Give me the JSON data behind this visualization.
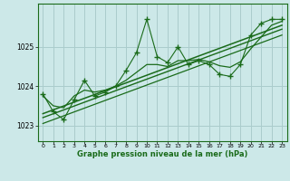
{
  "title": "",
  "xlabel": "Graphe pression niveau de la mer (hPa)",
  "bg_color": "#cce8e8",
  "grid_color": "#aacccc",
  "line_color": "#1a6b1a",
  "ylim": [
    1022.6,
    1026.1
  ],
  "xlim": [
    -0.5,
    23.5
  ],
  "yticks": [
    1023,
    1024,
    1025
  ],
  "xticks": [
    0,
    1,
    2,
    3,
    4,
    5,
    6,
    7,
    8,
    9,
    10,
    11,
    12,
    13,
    14,
    15,
    16,
    17,
    18,
    19,
    20,
    21,
    22,
    23
  ],
  "main_data": [
    1023.8,
    1023.35,
    1023.15,
    1023.65,
    1024.15,
    1023.75,
    1023.85,
    1024.0,
    1024.4,
    1024.85,
    1025.7,
    1024.75,
    1024.6,
    1025.0,
    1024.55,
    1024.65,
    1024.55,
    1024.3,
    1024.25,
    1024.55,
    1025.3,
    1025.6,
    1025.7,
    1025.7
  ],
  "smooth_data": [
    1023.75,
    1023.5,
    1023.45,
    1023.75,
    1023.9,
    1023.85,
    1023.9,
    1024.0,
    1024.15,
    1024.35,
    1024.55,
    1024.55,
    1024.5,
    1024.65,
    1024.65,
    1024.68,
    1024.62,
    1024.52,
    1024.48,
    1024.62,
    1024.95,
    1025.25,
    1025.55,
    1025.65
  ],
  "trend1": [
    1023.3,
    1025.55
  ],
  "trend2": [
    1023.2,
    1025.45
  ],
  "trend3": [
    1023.05,
    1025.3
  ]
}
